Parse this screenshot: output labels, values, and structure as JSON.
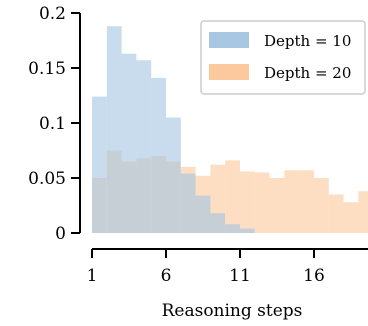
{
  "chart_data": {
    "type": "bar",
    "subtype": "overlaid-histogram",
    "xlabel": "Reasoning steps",
    "ylabel": "",
    "title": "",
    "xlim": [
      1,
      19.5
    ],
    "ylim": [
      0,
      0.2
    ],
    "x_ticks": [
      1,
      6,
      11,
      16
    ],
    "x_tick_labels": [
      "1",
      "6",
      "11",
      "16"
    ],
    "y_ticks": [
      0,
      0.05,
      0.1,
      0.15,
      0.2
    ],
    "y_tick_labels": [
      "0",
      "0.05",
      "0.1",
      "0.15",
      "0.2"
    ],
    "bin_width": 1,
    "bin_starts": [
      1,
      2,
      3,
      4,
      5,
      6,
      7,
      8,
      9,
      10,
      11,
      12,
      13,
      14,
      15,
      16,
      17,
      18,
      19
    ],
    "legend_position": "upper-right",
    "grid": false,
    "series": [
      {
        "name": "Depth = 10",
        "color": "#a7c7e2",
        "values": [
          0.124,
          0.188,
          0.163,
          0.157,
          0.141,
          0.105,
          0.054,
          0.034,
          0.018,
          0.008,
          0.004,
          0,
          0,
          0,
          0,
          0,
          0,
          0,
          0
        ]
      },
      {
        "name": "Depth = 20",
        "color": "#fcc99e",
        "values": [
          0.05,
          0.075,
          0.065,
          0.068,
          0.07,
          0.065,
          0.06,
          0.052,
          0.062,
          0.066,
          0.056,
          0.055,
          0.05,
          0.057,
          0.057,
          0.05,
          0.035,
          0.028,
          0.038
        ]
      }
    ]
  }
}
